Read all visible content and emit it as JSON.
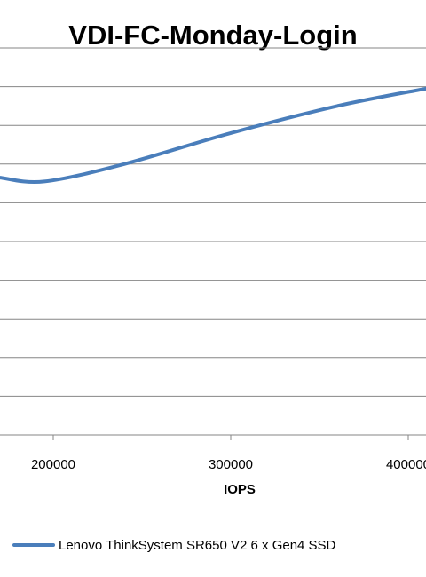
{
  "chart_data": {
    "type": "line",
    "title": "VDI-FC-Monday-Login",
    "xlabel": "IOPS",
    "ylabel": "",
    "xlim": [
      170000,
      410000
    ],
    "ylim": [
      0,
      10
    ],
    "x_ticks": [
      200000,
      300000,
      400000
    ],
    "x_tick_labels": [
      "200000",
      "300000",
      "400000"
    ],
    "y_gridlines": [
      1,
      2,
      3,
      4,
      5,
      6,
      7,
      8,
      9,
      10
    ],
    "grid": true,
    "legend_position": "bottom",
    "series": [
      {
        "name": "Lenovo ThinkSystem SR650 V2 6 x Gen4 SSD",
        "color": "#4a7ebb",
        "x": [
          170000,
          195000,
          240000,
          300000,
          360000,
          410000
        ],
        "y": [
          6.65,
          6.55,
          7.0,
          7.8,
          8.5,
          8.95
        ]
      }
    ]
  }
}
